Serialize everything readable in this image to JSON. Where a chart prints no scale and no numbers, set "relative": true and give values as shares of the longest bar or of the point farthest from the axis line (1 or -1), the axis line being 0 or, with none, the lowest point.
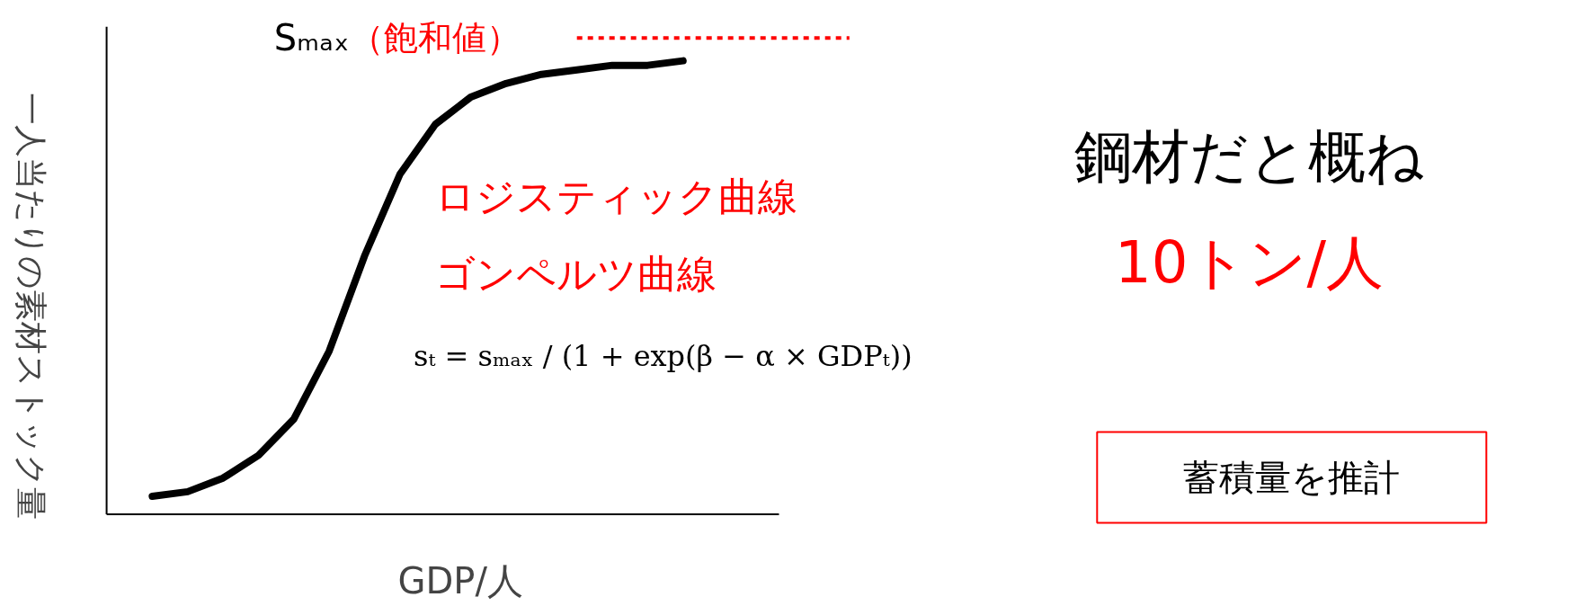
{
  "chart_data": {
    "type": "line",
    "relative": true,
    "xlabel": "GDP/人",
    "ylabel": "一人当たりの素材ストック量",
    "categories": [
      null,
      null,
      null,
      null,
      null,
      null,
      null,
      null,
      null,
      null,
      null,
      null,
      null,
      null,
      null,
      null
    ],
    "series": [
      {
        "color": "#000000",
        "values": [
          0.04,
          0.05,
          0.08,
          0.13,
          0.21,
          0.36,
          0.57,
          0.75,
          0.86,
          0.92,
          0.95,
          0.97,
          0.98,
          0.99,
          0.99,
          1.0
        ]
      }
    ],
    "ref_lines": [
      {
        "axis": "y",
        "value": 1.05,
        "label": "（飽和値）",
        "color": "#ff0000",
        "line_style": "dashed"
      }
    ],
    "annotations": [
      "Sₘₐₓ",
      "ロジスティック曲線",
      "ゴンペルツ曲線",
      "sₜ = sₘₐₓ / (1 + exp(β − α × GDPₜ))",
      "鋼材だと概ね",
      "10トン/人",
      "蓄積量を推計"
    ]
  }
}
